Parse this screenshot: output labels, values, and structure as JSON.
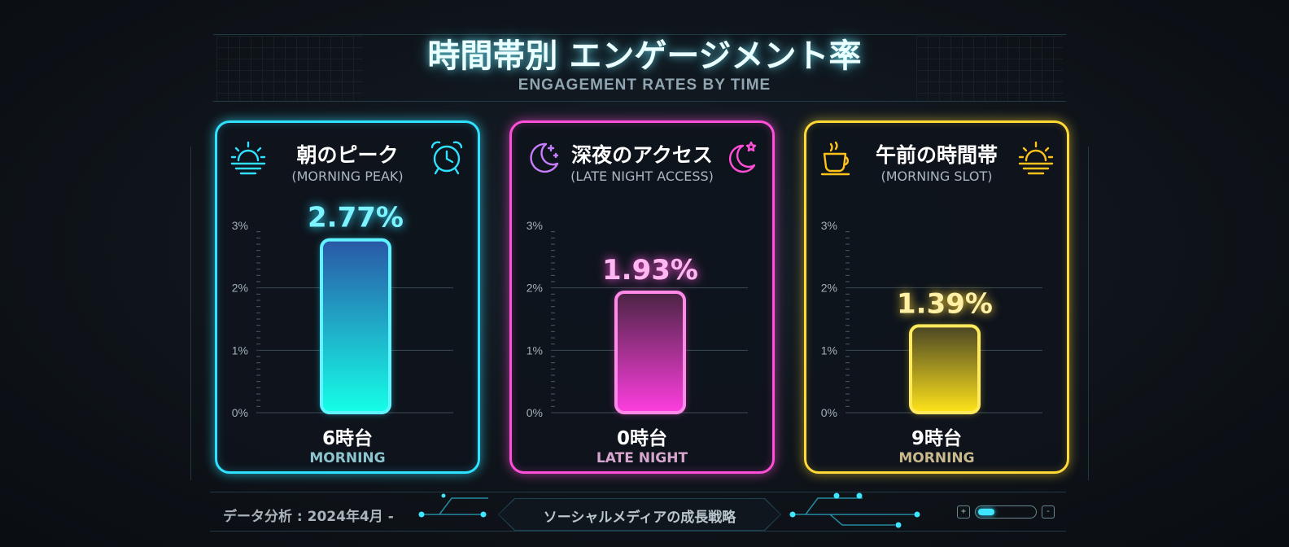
{
  "title": "時間帯別 エンゲージメント率",
  "subtitle": "ENGAGEMENT RATES BY TIME",
  "colors": {
    "cyan": "#2fe0ff",
    "magenta": "#ff4fd8",
    "yellow": "#ffd935",
    "background": "#0f141a"
  },
  "cards": [
    {
      "title": "朝のピーク",
      "subtitle": "(MORNING PEAK)",
      "value_label": "2.77%",
      "hour": "6時台",
      "time_of_day": "MORNING",
      "icon_left": "sunrise-icon",
      "icon_right": "alarm-clock-icon"
    },
    {
      "title": "深夜のアクセス",
      "subtitle": "(LATE NIGHT ACCESS)",
      "value_label": "1.93%",
      "hour": "0時台",
      "time_of_day": "LATE NIGHT",
      "icon_left": "moon-stars-icon",
      "icon_right": "moon-star-icon"
    },
    {
      "title": "午前の時間帯",
      "subtitle": "(MORNING SLOT)",
      "value_label": "1.39%",
      "hour": "9時台",
      "time_of_day": "MORNING",
      "icon_left": "coffee-cup-icon",
      "icon_right": "sunrise-icon"
    }
  ],
  "chart_data": {
    "type": "bar",
    "categories": [
      "6時台",
      "0時台",
      "9時台"
    ],
    "values": [
      2.77,
      1.93,
      1.39
    ],
    "ylim": [
      0,
      3
    ],
    "yticks": [
      "0%",
      "1%",
      "2%",
      "3%"
    ],
    "grid": true,
    "title": "時間帯別 エンゲージメント率"
  },
  "footer": {
    "left": "データ分析 : 2024年4月 -",
    "center": "ソーシャルメディアの成長戦略",
    "plus": "+",
    "minus": "-",
    "slider_level": 0.3
  }
}
